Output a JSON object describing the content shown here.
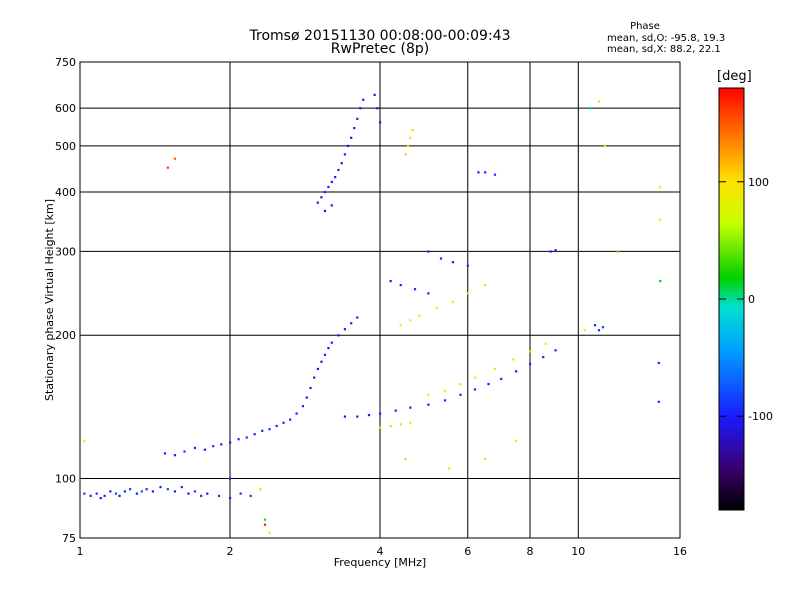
{
  "header": {
    "title": "Tromsø 20151130 00:08:00-00:09:43",
    "subtitle": "RwPretec (8p)",
    "phase_heading": "Phase",
    "phase_line1": "mean, sd,O: -95.8, 19.3",
    "phase_line2": "mean, sd,X:  88.2, 22.1"
  },
  "colorbar": {
    "title": "[deg]",
    "ticks": [
      {
        "value": 100,
        "label": "100"
      },
      {
        "value": 0,
        "label": "0"
      },
      {
        "value": -100,
        "label": "-100"
      }
    ],
    "range": [
      -180,
      180
    ]
  },
  "chart_data": {
    "type": "scatter",
    "xlabel": "Frequency [MHz]",
    "ylabel": "Stationary phase Virtual Height [km]",
    "x_scale": "log",
    "y_scale": "log",
    "xlim": [
      1,
      16
    ],
    "ylim": [
      75,
      750
    ],
    "x_ticks": [
      {
        "value": 1,
        "label": "1"
      },
      {
        "value": 2,
        "label": "2"
      },
      {
        "value": 4,
        "label": "4"
      },
      {
        "value": 6,
        "label": "6"
      },
      {
        "value": 8,
        "label": "8"
      },
      {
        "value": 10,
        "label": "10"
      },
      {
        "value": 16,
        "label": "16"
      }
    ],
    "y_ticks": [
      {
        "value": 75,
        "label": "75"
      },
      {
        "value": 100,
        "label": "100"
      },
      {
        "value": 200,
        "label": "200"
      },
      {
        "value": 300,
        "label": "300"
      },
      {
        "value": 400,
        "label": "400"
      },
      {
        "value": 500,
        "label": "500"
      },
      {
        "value": 600,
        "label": "600"
      },
      {
        "value": 750,
        "label": "750"
      }
    ],
    "grid": true,
    "points": [
      [
        1.02,
        93,
        -95
      ],
      [
        1.05,
        92,
        -100
      ],
      [
        1.08,
        93,
        -90
      ],
      [
        1.1,
        91,
        -105
      ],
      [
        1.12,
        92,
        -95
      ],
      [
        1.15,
        94,
        -100
      ],
      [
        1.18,
        93,
        -85
      ],
      [
        1.2,
        92,
        -110
      ],
      [
        1.23,
        94,
        -95
      ],
      [
        1.26,
        95,
        -90
      ],
      [
        1.3,
        93,
        -100
      ],
      [
        1.33,
        94,
        -80
      ],
      [
        1.36,
        95,
        -95
      ],
      [
        1.4,
        94,
        -100
      ],
      [
        1.45,
        96,
        -90
      ],
      [
        1.5,
        95,
        -85
      ],
      [
        1.55,
        94,
        -100
      ],
      [
        1.6,
        96,
        -95
      ],
      [
        1.65,
        93,
        -105
      ],
      [
        1.7,
        94,
        -90
      ],
      [
        1.75,
        92,
        -95
      ],
      [
        1.8,
        93,
        -100
      ],
      [
        1.9,
        92,
        -90
      ],
      [
        2.0,
        91,
        -100
      ],
      [
        2.1,
        93,
        -95
      ],
      [
        2.2,
        92,
        -85
      ],
      [
        2.35,
        80,
        170
      ],
      [
        2.4,
        77,
        100
      ],
      [
        2.35,
        82,
        30
      ],
      [
        1.48,
        113,
        -95
      ],
      [
        1.55,
        112,
        -100
      ],
      [
        1.62,
        114,
        -90
      ],
      [
        1.7,
        116,
        -95
      ],
      [
        1.78,
        115,
        -100
      ],
      [
        1.85,
        117,
        -90
      ],
      [
        1.92,
        118,
        -95
      ],
      [
        2.0,
        119,
        -100
      ],
      [
        2.08,
        121,
        -95
      ],
      [
        2.16,
        122,
        -90
      ],
      [
        2.24,
        124,
        -100
      ],
      [
        2.32,
        126,
        -95
      ],
      [
        2.4,
        127,
        -90
      ],
      [
        2.48,
        129,
        -100
      ],
      [
        2.56,
        131,
        -95
      ],
      [
        2.64,
        133,
        -105
      ],
      [
        2.72,
        137,
        -100
      ],
      [
        2.8,
        142,
        -95
      ],
      [
        2.85,
        148,
        -110
      ],
      [
        2.9,
        155,
        -100
      ],
      [
        2.95,
        163,
        -105
      ],
      [
        3.0,
        170,
        -110
      ],
      [
        3.05,
        176,
        -100
      ],
      [
        3.1,
        182,
        -105
      ],
      [
        3.15,
        188,
        -110
      ],
      [
        3.2,
        193,
        -100
      ],
      [
        3.3,
        200,
        -105
      ],
      [
        3.4,
        206,
        -110
      ],
      [
        3.5,
        212,
        -100
      ],
      [
        3.6,
        218,
        -105
      ],
      [
        3.0,
        380,
        -105
      ],
      [
        3.05,
        390,
        -110
      ],
      [
        3.1,
        400,
        -100
      ],
      [
        3.15,
        410,
        -105
      ],
      [
        3.2,
        420,
        -110
      ],
      [
        3.25,
        430,
        -100
      ],
      [
        3.3,
        445,
        -105
      ],
      [
        3.35,
        460,
        -110
      ],
      [
        3.4,
        480,
        -100
      ],
      [
        3.45,
        500,
        -105
      ],
      [
        3.5,
        520,
        -110
      ],
      [
        3.55,
        545,
        -100
      ],
      [
        3.6,
        570,
        -105
      ],
      [
        3.65,
        600,
        -110
      ],
      [
        3.7,
        625,
        -100
      ],
      [
        3.9,
        640,
        -105
      ],
      [
        3.95,
        600,
        -110
      ],
      [
        4.0,
        560,
        -100
      ],
      [
        3.1,
        365,
        -115
      ],
      [
        3.2,
        375,
        -110
      ],
      [
        3.4,
        135,
        -100
      ],
      [
        3.6,
        135,
        -105
      ],
      [
        3.8,
        136,
        -100
      ],
      [
        4.0,
        137,
        -95
      ],
      [
        4.3,
        139,
        -100
      ],
      [
        4.6,
        141,
        -105
      ],
      [
        5.0,
        143,
        -100
      ],
      [
        5.4,
        146,
        -95
      ],
      [
        5.8,
        150,
        -100
      ],
      [
        6.2,
        154,
        -95
      ],
      [
        6.6,
        158,
        -100
      ],
      [
        7.0,
        162,
        -95
      ],
      [
        7.5,
        168,
        -100
      ],
      [
        8.0,
        174,
        -95
      ],
      [
        8.5,
        180,
        -100
      ],
      [
        9.0,
        186,
        -95
      ],
      [
        4.0,
        128,
        100
      ],
      [
        4.2,
        129,
        110
      ],
      [
        4.4,
        130,
        105
      ],
      [
        4.6,
        131,
        100
      ],
      [
        5.0,
        150,
        95
      ],
      [
        5.4,
        153,
        100
      ],
      [
        5.8,
        158,
        105
      ],
      [
        6.2,
        163,
        100
      ],
      [
        6.8,
        170,
        95
      ],
      [
        7.4,
        178,
        100
      ],
      [
        8.0,
        185,
        105
      ],
      [
        8.6,
        192,
        100
      ],
      [
        4.4,
        210,
        90
      ],
      [
        4.6,
        215,
        95
      ],
      [
        4.8,
        220,
        100
      ],
      [
        5.2,
        228,
        95
      ],
      [
        5.6,
        235,
        100
      ],
      [
        6.0,
        245,
        95
      ],
      [
        6.5,
        255,
        100
      ],
      [
        4.5,
        480,
        110
      ],
      [
        4.55,
        500,
        105
      ],
      [
        4.6,
        520,
        100
      ],
      [
        4.65,
        540,
        110
      ],
      [
        6.3,
        440,
        -100
      ],
      [
        6.5,
        440,
        -95
      ],
      [
        6.8,
        435,
        -90
      ],
      [
        8.8,
        300,
        -100
      ],
      [
        9.0,
        302,
        -95
      ],
      [
        5.0,
        300,
        -100
      ],
      [
        5.3,
        290,
        -105
      ],
      [
        5.6,
        285,
        -100
      ],
      [
        6.0,
        280,
        -95
      ],
      [
        4.2,
        260,
        -100
      ],
      [
        4.4,
        255,
        -105
      ],
      [
        4.7,
        250,
        -100
      ],
      [
        5.0,
        245,
        -95
      ],
      [
        10.8,
        210,
        -100
      ],
      [
        11.0,
        205,
        -95
      ],
      [
        11.2,
        208,
        -90
      ],
      [
        10.3,
        205,
        90
      ],
      [
        14.5,
        175,
        -100
      ],
      [
        14.5,
        145,
        -100
      ],
      [
        14.6,
        410,
        80
      ],
      [
        14.6,
        350,
        95
      ],
      [
        14.6,
        260,
        20
      ],
      [
        11.0,
        620,
        100
      ],
      [
        10.6,
        600,
        10
      ],
      [
        11.3,
        500,
        95
      ],
      [
        12.0,
        300,
        40
      ],
      [
        1.5,
        450,
        160
      ],
      [
        1.55,
        470,
        150
      ],
      [
        2.3,
        95,
        60
      ],
      [
        1.02,
        120,
        100
      ],
      [
        2.0,
        100,
        -95
      ],
      [
        4.5,
        110,
        110
      ],
      [
        5.5,
        105,
        100
      ],
      [
        6.5,
        110,
        95
      ],
      [
        7.5,
        120,
        100
      ]
    ]
  }
}
